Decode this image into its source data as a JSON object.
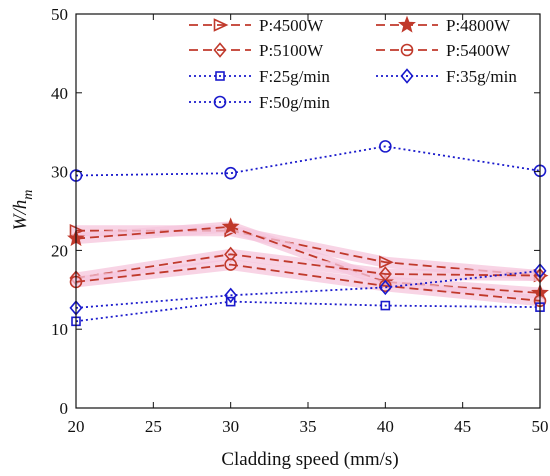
{
  "chart_data": {
    "type": "line",
    "title": "",
    "xlabel": "Cladding speed (mm/s)",
    "ylabel_main": "W/h",
    "ylabel_sub": "m",
    "xlim": [
      20,
      50
    ],
    "ylim": [
      0,
      50
    ],
    "xticks": [
      20,
      25,
      30,
      35,
      40,
      45,
      50
    ],
    "yticks": [
      0,
      10,
      20,
      30,
      40,
      50
    ],
    "grid": false,
    "legend_position": "top-right",
    "x": [
      20,
      30,
      40,
      50
    ],
    "series": [
      {
        "name": "P:4500W",
        "values": [
          22.5,
          22.5,
          18.5,
          16.8
        ],
        "color": "#c0392b",
        "marker": "triangle-right",
        "style": "dashed"
      },
      {
        "name": "P:4800W",
        "values": [
          21.5,
          23.0,
          16.0,
          14.6
        ],
        "color": "#c0392b",
        "marker": "star",
        "style": "dashed"
      },
      {
        "name": "P:5100W",
        "values": [
          16.5,
          19.5,
          17.0,
          16.8
        ],
        "color": "#c0392b",
        "marker": "diamond",
        "style": "dashed"
      },
      {
        "name": "P:5400W",
        "values": [
          16.0,
          18.2,
          15.5,
          13.6
        ],
        "color": "#c0392b",
        "marker": "circle",
        "style": "dashed"
      },
      {
        "name": "F:25g/min",
        "values": [
          11.0,
          13.5,
          13.0,
          12.8
        ],
        "color": "#1a1acc",
        "marker": "square",
        "style": "dotted"
      },
      {
        "name": "F:35g/min",
        "values": [
          12.7,
          14.3,
          15.3,
          17.4
        ],
        "color": "#1a1acc",
        "marker": "diamond",
        "style": "dotted"
      },
      {
        "name": "F:50g/min",
        "values": [
          29.5,
          29.8,
          33.2,
          30.1
        ],
        "color": "#1a1acc",
        "marker": "circle",
        "style": "dotted"
      }
    ]
  }
}
